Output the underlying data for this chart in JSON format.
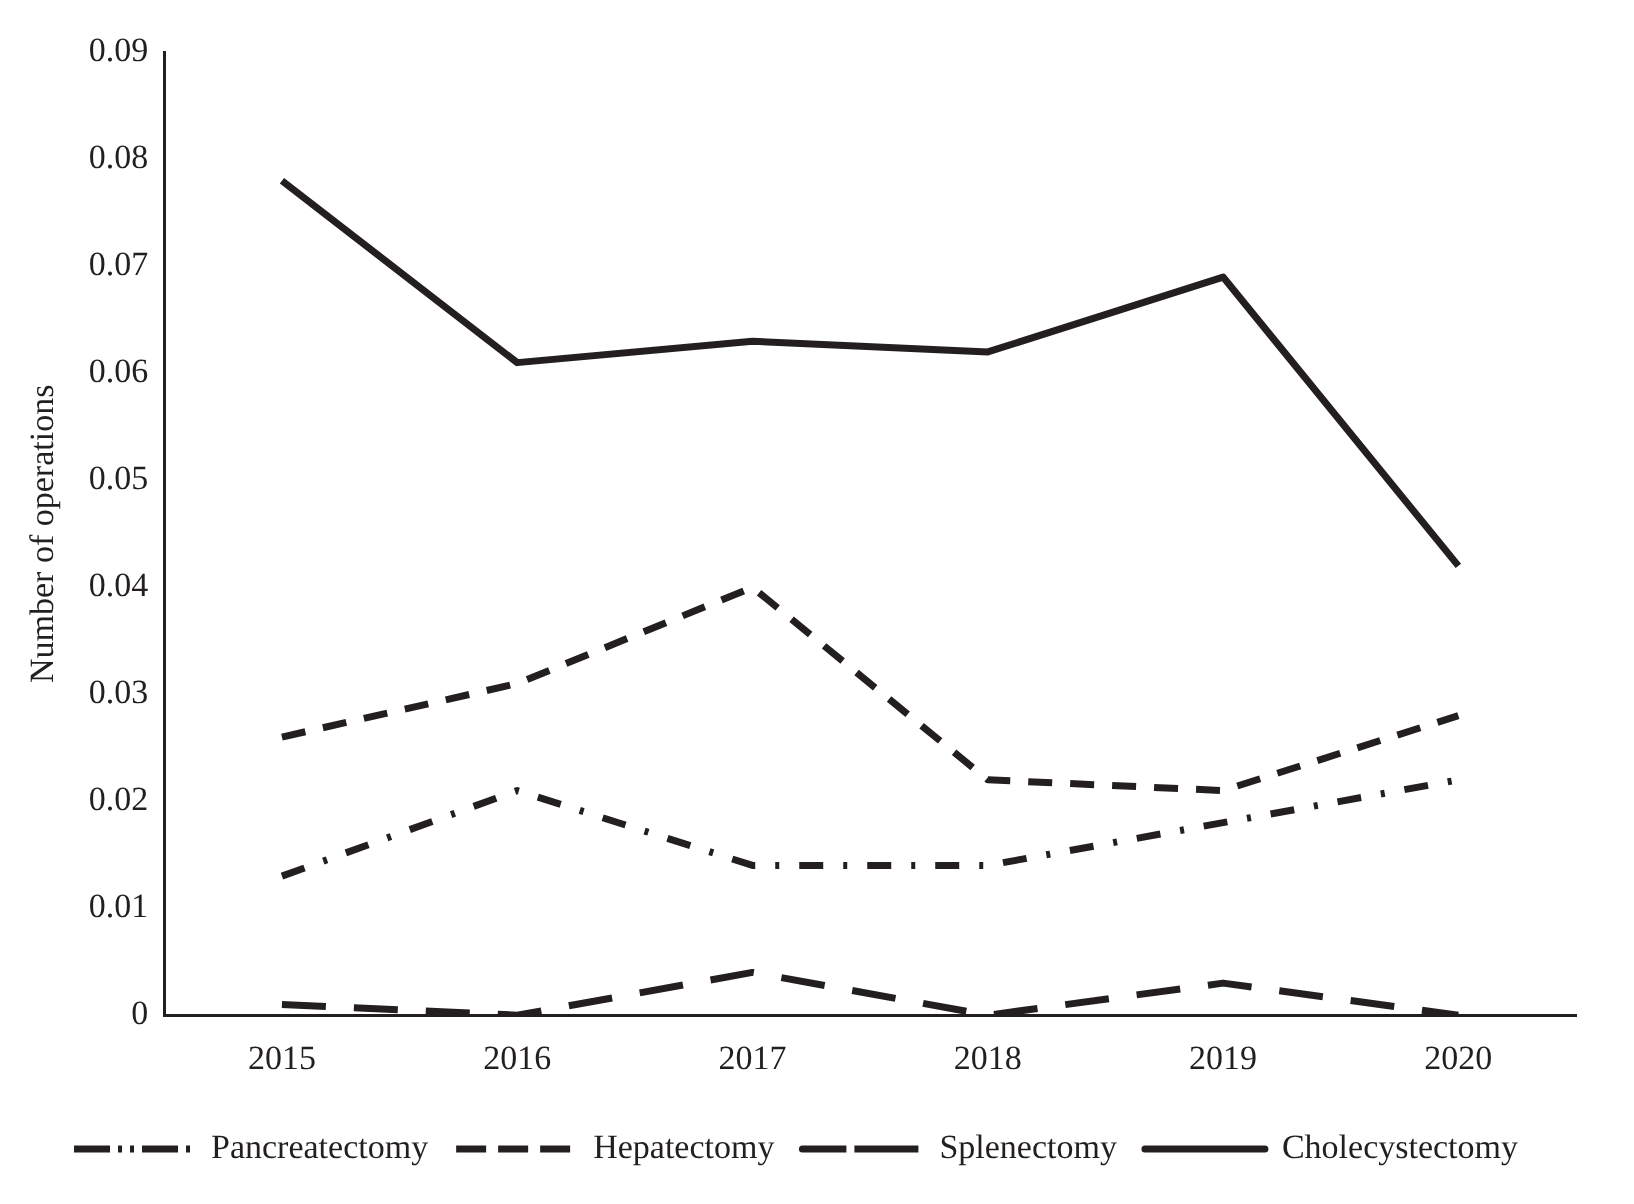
{
  "chart_data": {
    "type": "line",
    "ylabel": "Number of operations",
    "categories": [
      "2015",
      "2016",
      "2017",
      "2018",
      "2019",
      "2020"
    ],
    "series": [
      {
        "name": "Pancreatectomy",
        "color": "#231f20",
        "line_style": "dashdot",
        "values": [
          0.013,
          0.021,
          0.014,
          0.014,
          0.018,
          0.022
        ]
      },
      {
        "name": "Hepatectomy",
        "color": "#231f20",
        "line_style": "dashed",
        "values": [
          0.026,
          0.031,
          0.04,
          0.022,
          0.021,
          0.028
        ]
      },
      {
        "name": "Splenectomy",
        "color": "#231f20",
        "line_style": "longdash",
        "values": [
          0.001,
          0,
          0.004,
          0,
          0.003,
          0
        ]
      },
      {
        "name": "Cholecystectomy",
        "color": "#231f20",
        "line_style": "solid",
        "values": [
          0.078,
          0.061,
          0.063,
          0.062,
          0.069,
          0.042
        ]
      }
    ],
    "ylim": [
      0,
      0.09
    ],
    "yticks": [
      0,
      0.01,
      0.02,
      0.03,
      0.04,
      0.05,
      0.06,
      0.07,
      0.08,
      0.09
    ],
    "grid": false,
    "legend": "bottom",
    "marker": "none"
  }
}
